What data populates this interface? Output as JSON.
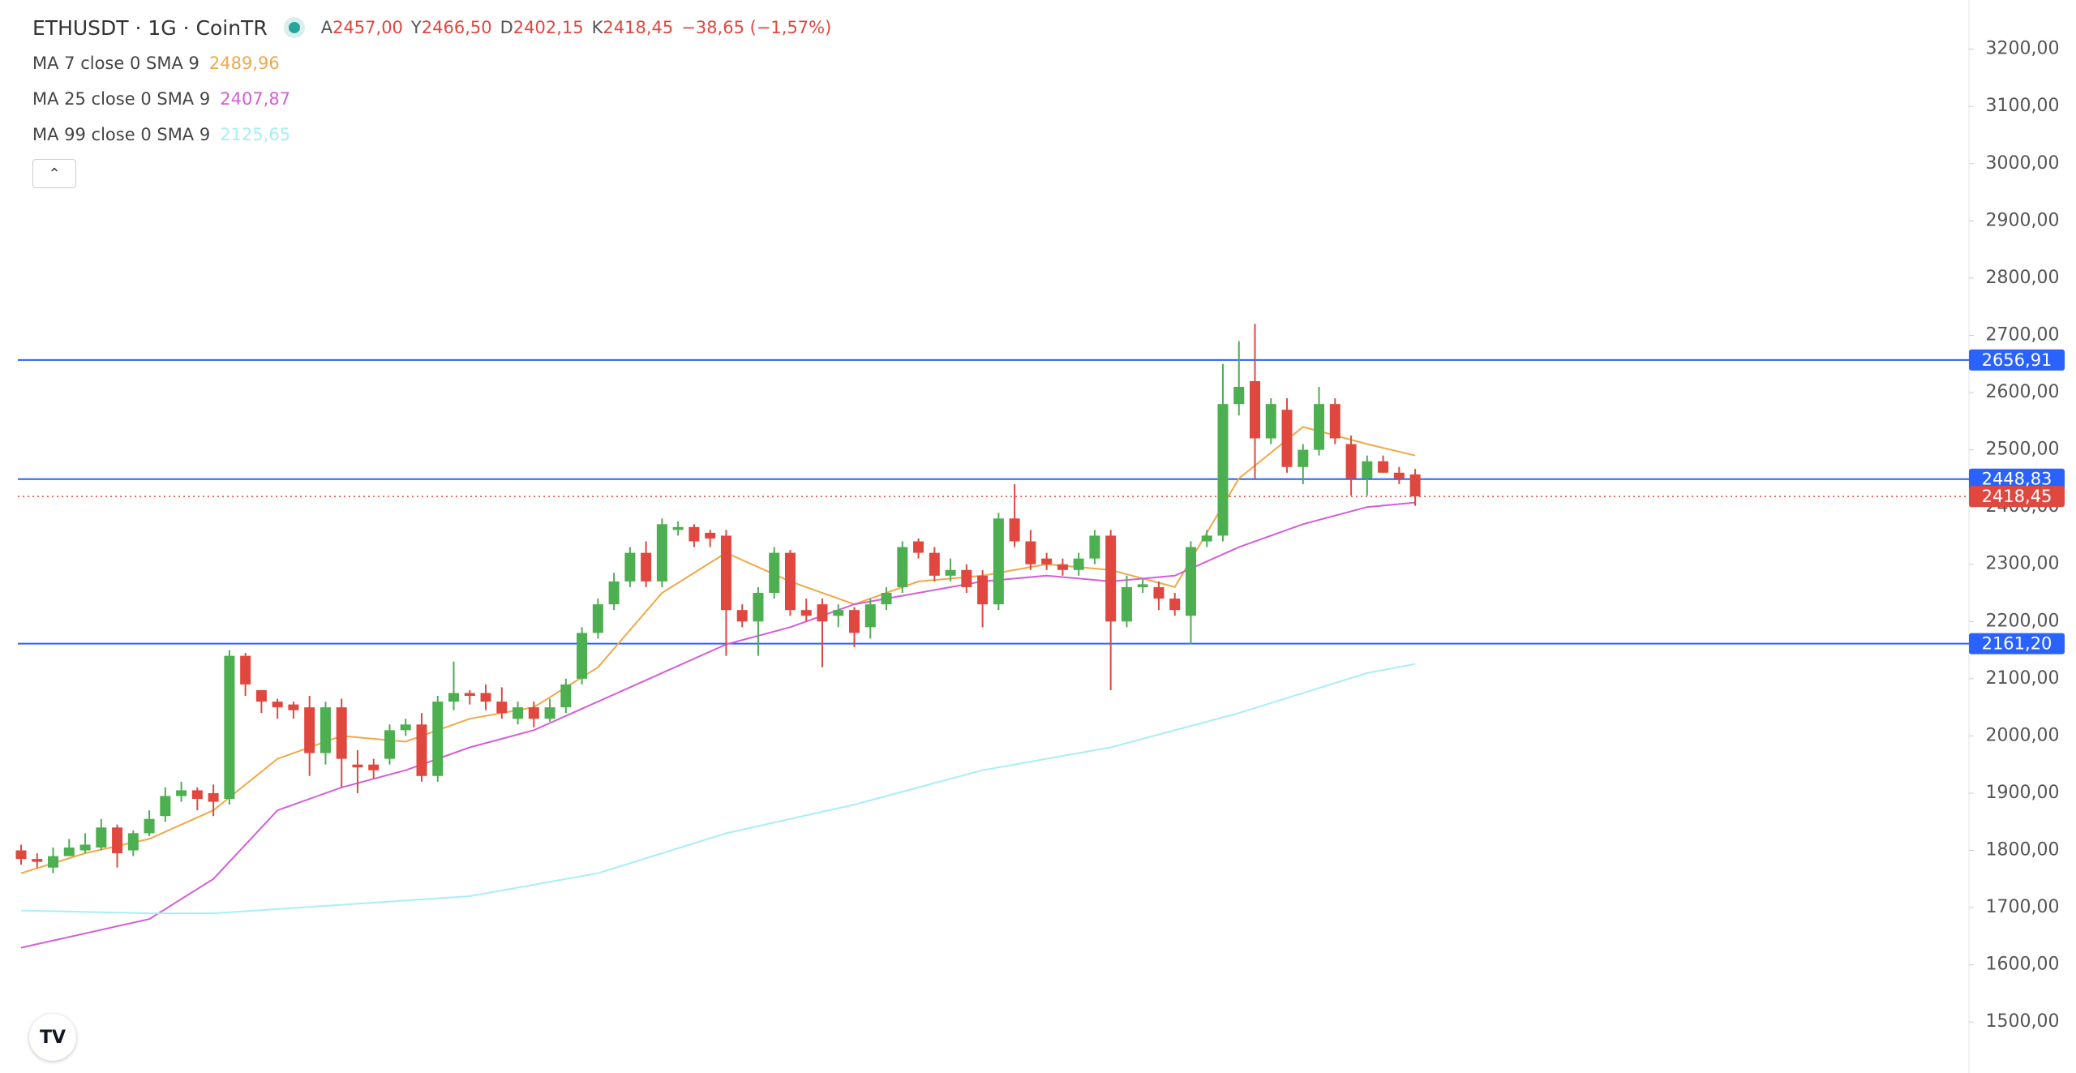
{
  "chart_data": {
    "type": "candlestick",
    "title": "ETHUSDT · 1G · CoinTR",
    "header": {
      "labels": [
        "A",
        "Y",
        "D",
        "K"
      ],
      "values": [
        {
          "value": 2457,
          "label": "2457,00"
        },
        {
          "value": 2466.5,
          "label": "2466,50"
        },
        {
          "value": 2402.15,
          "label": "2402,15"
        },
        {
          "value": 2418.45,
          "label": "2418,45"
        }
      ],
      "change": "−38,65 (−1,57%)"
    },
    "up_color": "#4caf50",
    "down_color": "#e0483f",
    "open": [
      1800,
      1785,
      1770,
      1790,
      1800,
      1805,
      1840,
      1800,
      1830,
      1860,
      1895,
      1905,
      1900,
      1890,
      2140,
      2080,
      2060,
      2055,
      2050,
      1970,
      2050,
      1950,
      1950,
      1960,
      2010,
      2020,
      1930,
      2060,
      2075,
      2075,
      2060,
      2030,
      2050,
      2030,
      2050,
      2100,
      2180,
      2230,
      2270,
      2320,
      2270,
      2360,
      2365,
      2355,
      2350,
      2220,
      2200,
      2250,
      2320,
      2220,
      2230,
      2210,
      2220,
      2190,
      2230,
      2260,
      2340,
      2320,
      2280,
      2290,
      2280,
      2230,
      2380,
      2340,
      2310,
      2300,
      2290,
      2310,
      2350,
      2200,
      2260,
      2260,
      2240,
      2210,
      2340,
      2350,
      2580,
      2620,
      2520,
      2570,
      2470,
      2500,
      2580,
      2510,
      2450,
      2480,
      2460,
      2457
    ],
    "high": [
      1810,
      1795,
      1805,
      1820,
      1830,
      1855,
      1845,
      1835,
      1870,
      1910,
      1920,
      1910,
      1915,
      2150,
      2145,
      2080,
      2065,
      2060,
      2070,
      2060,
      2065,
      1975,
      1960,
      2020,
      2030,
      2040,
      2070,
      2130,
      2080,
      2090,
      2085,
      2060,
      2060,
      2065,
      2100,
      2190,
      2240,
      2285,
      2330,
      2340,
      2380,
      2375,
      2370,
      2360,
      2360,
      2230,
      2260,
      2330,
      2325,
      2240,
      2240,
      2230,
      2225,
      2240,
      2260,
      2340,
      2345,
      2330,
      2310,
      2300,
      2290,
      2390,
      2440,
      2360,
      2320,
      2310,
      2320,
      2360,
      2360,
      2280,
      2275,
      2270,
      2250,
      2340,
      2360,
      2650,
      2690,
      2720,
      2590,
      2590,
      2510,
      2610,
      2590,
      2525,
      2490,
      2490,
      2470,
      2466.5
    ],
    "low": [
      1775,
      1770,
      1760,
      1790,
      1795,
      1800,
      1770,
      1790,
      1825,
      1850,
      1885,
      1870,
      1860,
      1880,
      2070,
      2040,
      2030,
      2030,
      1930,
      1950,
      1910,
      1900,
      1925,
      1950,
      2000,
      1920,
      1920,
      2045,
      2055,
      2045,
      2030,
      2020,
      2015,
      2025,
      2040,
      2090,
      2170,
      2220,
      2260,
      2260,
      2260,
      2350,
      2330,
      2330,
      2140,
      2190,
      2140,
      2240,
      2210,
      2200,
      2120,
      2190,
      2155,
      2170,
      2220,
      2250,
      2310,
      2270,
      2270,
      2250,
      2190,
      2220,
      2330,
      2290,
      2290,
      2280,
      2280,
      2300,
      2080,
      2190,
      2250,
      2220,
      2210,
      2160,
      2330,
      2340,
      2560,
      2450,
      2510,
      2460,
      2440,
      2490,
      2510,
      2420,
      2420,
      2460,
      2440,
      2402.15
    ],
    "close": [
      1785,
      1780,
      1790,
      1805,
      1810,
      1840,
      1795,
      1830,
      1855,
      1895,
      1905,
      1890,
      1885,
      2140,
      2090,
      2060,
      2050,
      2045,
      1970,
      2050,
      1960,
      1945,
      1940,
      2010,
      2020,
      1930,
      2060,
      2075,
      2070,
      2060,
      2040,
      2050,
      2030,
      2050,
      2090,
      2180,
      2230,
      2270,
      2320,
      2270,
      2370,
      2365,
      2340,
      2345,
      2220,
      2200,
      2250,
      2320,
      2220,
      2210,
      2200,
      2220,
      2180,
      2230,
      2250,
      2330,
      2320,
      2280,
      2290,
      2260,
      2230,
      2380,
      2340,
      2300,
      2300,
      2290,
      2310,
      2350,
      2200,
      2260,
      2265,
      2240,
      2220,
      2330,
      2350,
      2580,
      2610,
      2520,
      2580,
      2470,
      2500,
      2580,
      2520,
      2450,
      2480,
      2460,
      2450,
      2418.45
    ],
    "series": [
      {
        "name": "MA 7 close 0 SMA 9",
        "color": "#f0a847",
        "last": {
          "value": 2489.96,
          "label": "2489,96"
        },
        "x": [
          0,
          4,
          8,
          12,
          16,
          20,
          24,
          28,
          32,
          36,
          40,
          44,
          48,
          52,
          56,
          60,
          64,
          68,
          72,
          76,
          80,
          84,
          87
        ],
        "values": [
          1760,
          1795,
          1820,
          1870,
          1960,
          2000,
          1990,
          2030,
          2050,
          2120,
          2250,
          2320,
          2270,
          2230,
          2270,
          2280,
          2300,
          2290,
          2260,
          2450,
          2540,
          2510,
          2489.96
        ]
      },
      {
        "name": "MA 25 close 0 SMA 9",
        "color": "#d35fd6",
        "last": {
          "value": 2407.87,
          "label": "2407,87"
        },
        "x": [
          0,
          8,
          12,
          16,
          20,
          24,
          28,
          32,
          36,
          40,
          44,
          48,
          52,
          56,
          60,
          64,
          68,
          72,
          76,
          80,
          84,
          87
        ],
        "values": [
          1630,
          1680,
          1750,
          1870,
          1910,
          1940,
          1980,
          2010,
          2060,
          2110,
          2160,
          2190,
          2230,
          2250,
          2270,
          2280,
          2270,
          2280,
          2330,
          2370,
          2400,
          2407.87
        ]
      },
      {
        "name": "MA 99 close 0 SMA 9",
        "color": "#a8eef5",
        "last": {
          "value": 2125.65,
          "label": "2125,65"
        },
        "x": [
          0,
          8,
          12,
          20,
          28,
          36,
          44,
          52,
          60,
          68,
          76,
          84,
          87
        ],
        "values": [
          1695,
          1690,
          1690,
          1705,
          1720,
          1760,
          1830,
          1880,
          1940,
          1980,
          2040,
          2110,
          2125.65
        ]
      }
    ],
    "levels": [
      {
        "value": 2656.91,
        "label": "2656,91",
        "color": "#2962ff"
      },
      {
        "value": 2448.83,
        "label": "2448,83",
        "color": "#2962ff"
      },
      {
        "value": 2161.2,
        "label": "2161,20",
        "color": "#2962ff"
      }
    ],
    "last_price": {
      "value": 2418.45,
      "label": "2418,45",
      "color": "#e0483f"
    },
    "ylim": [
      1411,
      3286
    ],
    "yticks": [
      {
        "value": 1500,
        "label": "1500,00"
      },
      {
        "value": 1600,
        "label": "1600,00"
      },
      {
        "value": 1700,
        "label": "1700,00"
      },
      {
        "value": 1800,
        "label": "1800,00"
      },
      {
        "value": 1900,
        "label": "1900,00"
      },
      {
        "value": 2000,
        "label": "2000,00"
      },
      {
        "value": 2100,
        "label": "2100,00"
      },
      {
        "value": 2200,
        "label": "2200,00"
      },
      {
        "value": 2300,
        "label": "2300,00"
      },
      {
        "value": 2400,
        "label": "2400,00"
      },
      {
        "value": 2500,
        "label": "2500,00"
      },
      {
        "value": 2600,
        "label": "2600,00"
      },
      {
        "value": 2700,
        "label": "2700,00"
      },
      {
        "value": 2800,
        "label": "2800,00"
      },
      {
        "value": 2900,
        "label": "2900,00"
      },
      {
        "value": 3000,
        "label": "3000,00"
      },
      {
        "value": 3100,
        "label": "3100,00"
      },
      {
        "value": 3200,
        "label": "3200,00"
      }
    ]
  }
}
